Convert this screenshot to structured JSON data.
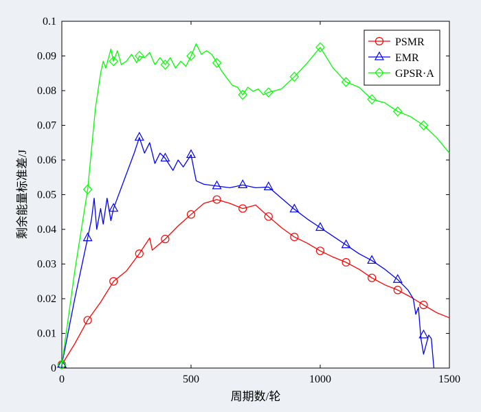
{
  "chart_data": {
    "type": "line",
    "title": "",
    "xlabel": "周期数/轮",
    "ylabel": "剩余能量标准差/J",
    "xlim": [
      0,
      1500
    ],
    "ylim": [
      0,
      0.1
    ],
    "x_ticks": [
      0,
      500,
      1000,
      1500
    ],
    "y_ticks": [
      0,
      0.01,
      0.02,
      0.03,
      0.04,
      0.05,
      0.06,
      0.07,
      0.08,
      0.09,
      0.1
    ],
    "x_tick_labels": [
      "0",
      "500",
      "1000",
      "1500"
    ],
    "y_tick_labels": [
      "0",
      "0.01",
      "0.02",
      "0.03",
      "0.04",
      "0.05",
      "0.06",
      "0.07",
      "0.08",
      "0.09",
      "0.1"
    ],
    "grid": false,
    "legend_position": "top-right",
    "series": [
      {
        "name": "PSMR",
        "color": "#ff0000",
        "marker": "circle",
        "x": [
          0,
          50,
          100,
          150,
          200,
          250,
          300,
          340,
          350,
          400,
          450,
          500,
          550,
          600,
          650,
          700,
          750,
          800,
          850,
          900,
          950,
          1000,
          1050,
          1100,
          1150,
          1200,
          1250,
          1300,
          1350,
          1400,
          1450,
          1500
        ],
        "y": [
          0.001,
          0.007,
          0.0138,
          0.019,
          0.025,
          0.028,
          0.033,
          0.0375,
          0.034,
          0.0372,
          0.041,
          0.0443,
          0.0475,
          0.0486,
          0.0475,
          0.046,
          0.047,
          0.0437,
          0.0405,
          0.0378,
          0.036,
          0.0338,
          0.032,
          0.0305,
          0.0285,
          0.026,
          0.024,
          0.0225,
          0.0205,
          0.0182,
          0.016,
          0.0145
        ],
        "markers_x": [
          0,
          100,
          200,
          300,
          400,
          500,
          600,
          700,
          800,
          900,
          1000,
          1100,
          1200,
          1300,
          1400
        ],
        "markers_y": [
          0.001,
          0.0138,
          0.025,
          0.033,
          0.0372,
          0.0443,
          0.0486,
          0.046,
          0.0437,
          0.0378,
          0.0338,
          0.0305,
          0.026,
          0.0225,
          0.0182
        ]
      },
      {
        "name": "EMR",
        "color": "#0000ff",
        "marker": "triangle",
        "x": [
          0,
          50,
          100,
          115,
          125,
          135,
          150,
          160,
          175,
          190,
          200,
          250,
          280,
          300,
          320,
          340,
          360,
          380,
          400,
          430,
          450,
          470,
          500,
          520,
          550,
          600,
          650,
          700,
          750,
          800,
          850,
          900,
          950,
          1000,
          1050,
          1100,
          1150,
          1200,
          1250,
          1300,
          1320,
          1340,
          1360,
          1370,
          1380,
          1390,
          1400,
          1420,
          1430,
          1440
        ],
        "y": [
          0.001,
          0.02,
          0.0375,
          0.043,
          0.049,
          0.04,
          0.046,
          0.0415,
          0.049,
          0.0425,
          0.046,
          0.056,
          0.062,
          0.0665,
          0.062,
          0.065,
          0.059,
          0.062,
          0.0605,
          0.057,
          0.06,
          0.058,
          0.0615,
          0.054,
          0.053,
          0.0525,
          0.052,
          0.0528,
          0.052,
          0.0522,
          0.049,
          0.0458,
          0.043,
          0.0405,
          0.038,
          0.0355,
          0.033,
          0.031,
          0.0285,
          0.0255,
          0.024,
          0.0225,
          0.02,
          0.0155,
          0.0175,
          0.0085,
          0.004,
          0.0095,
          0.0085,
          0.0
        ],
        "markers_x": [
          0,
          100,
          200,
          300,
          400,
          500,
          600,
          700,
          800,
          900,
          1000,
          1100,
          1200,
          1300,
          1400
        ],
        "markers_y": [
          0.001,
          0.0375,
          0.046,
          0.0665,
          0.0605,
          0.0615,
          0.0525,
          0.0528,
          0.0522,
          0.0458,
          0.0405,
          0.0355,
          0.031,
          0.0255,
          0.0095
        ]
      },
      {
        "name": "GPSR·A",
        "color": "#00ff00",
        "marker": "diamond",
        "x": [
          0,
          50,
          100,
          130,
          150,
          160,
          170,
          190,
          200,
          215,
          230,
          250,
          270,
          290,
          300,
          320,
          340,
          360,
          380,
          400,
          420,
          440,
          460,
          480,
          500,
          520,
          540,
          560,
          580,
          600,
          620,
          640,
          660,
          680,
          700,
          720,
          740,
          760,
          780,
          800,
          850,
          900,
          950,
          1000,
          1050,
          1100,
          1150,
          1200,
          1250,
          1300,
          1350,
          1400,
          1450,
          1500
        ],
        "y": [
          0.001,
          0.028,
          0.0515,
          0.075,
          0.085,
          0.0885,
          0.0865,
          0.092,
          0.0885,
          0.0915,
          0.0875,
          0.0885,
          0.0905,
          0.088,
          0.09,
          0.0895,
          0.091,
          0.0875,
          0.0895,
          0.0875,
          0.0895,
          0.0865,
          0.0885,
          0.087,
          0.09,
          0.0935,
          0.0905,
          0.0915,
          0.0905,
          0.088,
          0.0855,
          0.0835,
          0.0815,
          0.081,
          0.0788,
          0.081,
          0.0798,
          0.0805,
          0.0788,
          0.0795,
          0.0805,
          0.084,
          0.088,
          0.0925,
          0.0865,
          0.0825,
          0.081,
          0.0775,
          0.0765,
          0.074,
          0.0725,
          0.07,
          0.0665,
          0.062
        ],
        "markers_x": [
          0,
          100,
          200,
          300,
          400,
          500,
          600,
          700,
          800,
          900,
          1000,
          1100,
          1200,
          1300,
          1400
        ],
        "markers_y": [
          0.001,
          0.0515,
          0.0885,
          0.09,
          0.0875,
          0.09,
          0.088,
          0.0788,
          0.0795,
          0.084,
          0.0925,
          0.0825,
          0.0775,
          0.074,
          0.07
        ]
      }
    ]
  }
}
